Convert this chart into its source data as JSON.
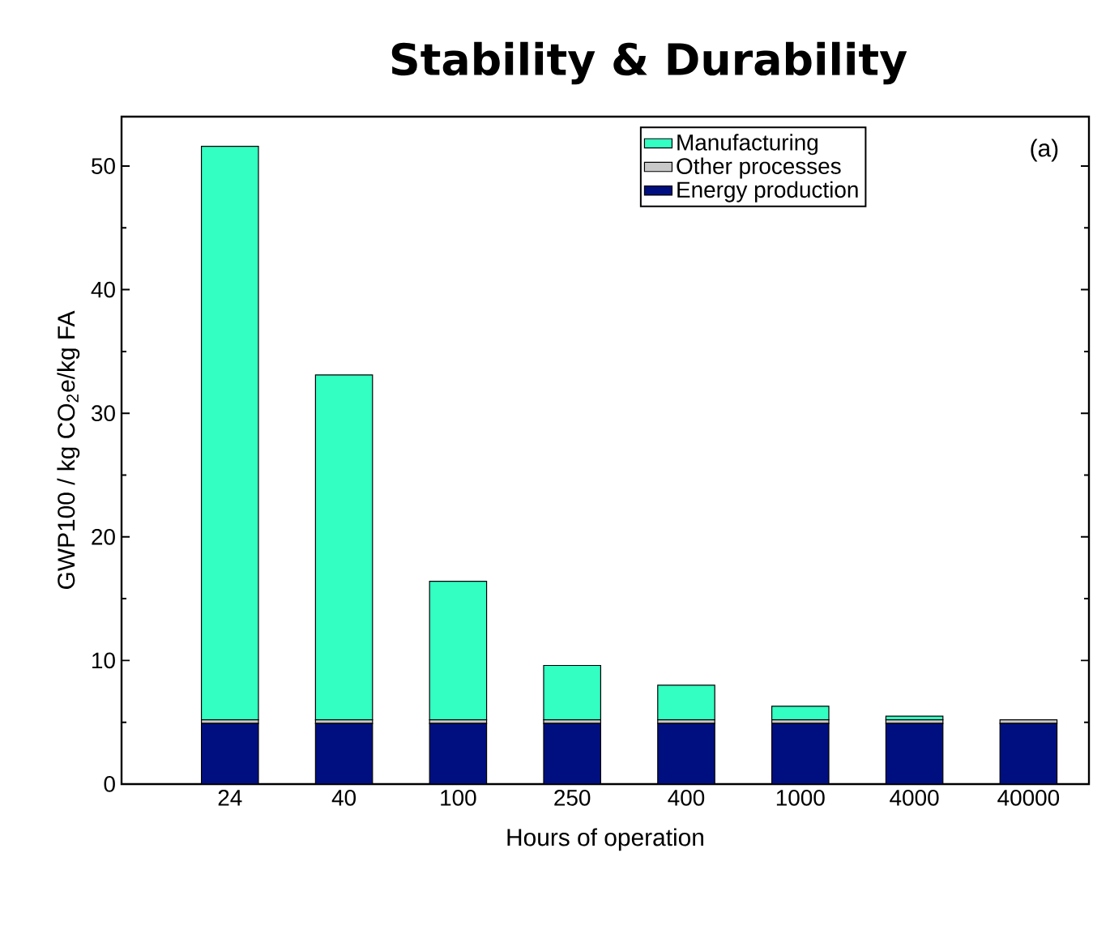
{
  "chart_data": {
    "type": "bar",
    "title": "Stability & Durability",
    "xlabel": "Hours of operation",
    "ylabel": "GWP100  /  kg CO$_{2}$e/kg FA",
    "categories": [
      "24",
      "40",
      "100",
      "250",
      "400",
      "1000",
      "4000",
      "40000"
    ],
    "stacked": true,
    "series": [
      {
        "name": "Energy production",
        "color": "#000f80",
        "values": [
          4.9,
          4.9,
          4.9,
          4.9,
          4.9,
          4.9,
          4.9,
          4.9
        ]
      },
      {
        "name": "Other processes",
        "color": "#c8c8c8",
        "values": [
          0.3,
          0.3,
          0.3,
          0.3,
          0.3,
          0.3,
          0.3,
          0.3
        ]
      },
      {
        "name": "Manufacturing",
        "color": "#33ffc2",
        "values": [
          46.4,
          27.9,
          11.2,
          4.4,
          2.8,
          1.1,
          0.3,
          0.0
        ]
      }
    ],
    "ylim": [
      0,
      54
    ],
    "yticks": [
      0,
      10,
      20,
      30,
      40,
      50
    ],
    "annotations": [
      "(a)"
    ],
    "legend": "top right",
    "grid": false
  }
}
